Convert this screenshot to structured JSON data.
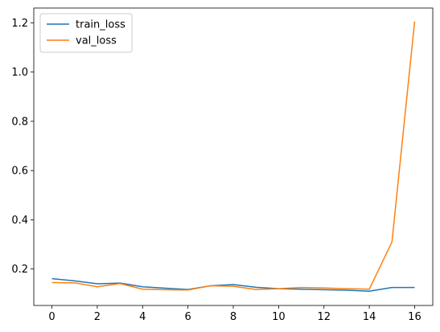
{
  "chart_data": {
    "type": "line",
    "title": "",
    "xlabel": "",
    "ylabel": "",
    "xlim": [
      -0.8,
      16.8
    ],
    "ylim": [
      0.052,
      1.26
    ],
    "grid": false,
    "legend_position": "top-left",
    "x": [
      0,
      1,
      2,
      3,
      4,
      5,
      6,
      7,
      8,
      9,
      10,
      11,
      12,
      13,
      14,
      15,
      16
    ],
    "x_ticks": [
      0,
      2,
      4,
      6,
      8,
      10,
      12,
      14,
      16
    ],
    "y_ticks": [
      0.2,
      0.4,
      0.6,
      0.8,
      1.0,
      1.2
    ],
    "series": [
      {
        "name": "train_loss",
        "color": "#1f77b4",
        "values": [
          0.161,
          0.152,
          0.14,
          0.143,
          0.128,
          0.122,
          0.117,
          0.132,
          0.137,
          0.126,
          0.12,
          0.118,
          0.116,
          0.114,
          0.11,
          0.125,
          0.125
        ]
      },
      {
        "name": "val_loss",
        "color": "#ff7f0e",
        "values": [
          0.145,
          0.144,
          0.128,
          0.141,
          0.118,
          0.116,
          0.115,
          0.132,
          0.13,
          0.117,
          0.12,
          0.125,
          0.123,
          0.12,
          0.118,
          0.31,
          1.205
        ]
      }
    ]
  }
}
